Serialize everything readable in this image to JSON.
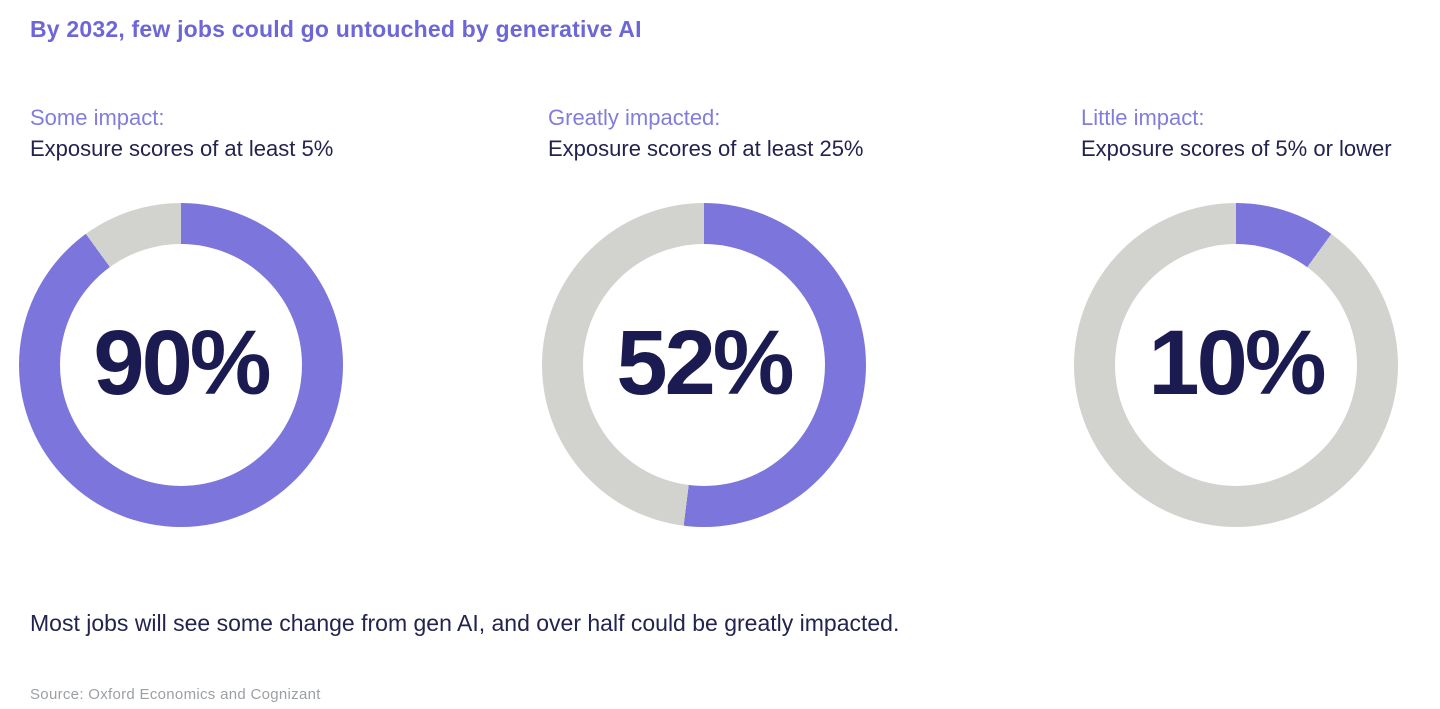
{
  "title": "By 2032, few jobs could go untouched by generative AI",
  "summary": "Most jobs will see some change from gen AI, and over half could be greatly impacted.",
  "source": "Source: Oxford Economics and Cognizant",
  "chart_data": {
    "type": "pie",
    "subtype": "donut",
    "direction": "clockwise",
    "start_angle_deg": 0,
    "colors": {
      "fill": "#7B75DC",
      "track": "#D2D2CF",
      "title": "#6C66D6",
      "category_label": "#827DDC",
      "body_text": "#23234F",
      "value_text": "#1B1B52",
      "source_text": "#9CA0A4"
    },
    "charts": [
      {
        "label": "Some impact:",
        "sublabel": "Exposure scores of at least 5%",
        "value": 90,
        "value_label": "90%"
      },
      {
        "label": "Greatly impacted:",
        "sublabel": "Exposure scores of at least 25%",
        "value": 52,
        "value_label": "52%"
      },
      {
        "label": "Little impact:",
        "sublabel": "Exposure scores of 5% or lower",
        "value": 10,
        "value_label": "10%"
      }
    ]
  }
}
